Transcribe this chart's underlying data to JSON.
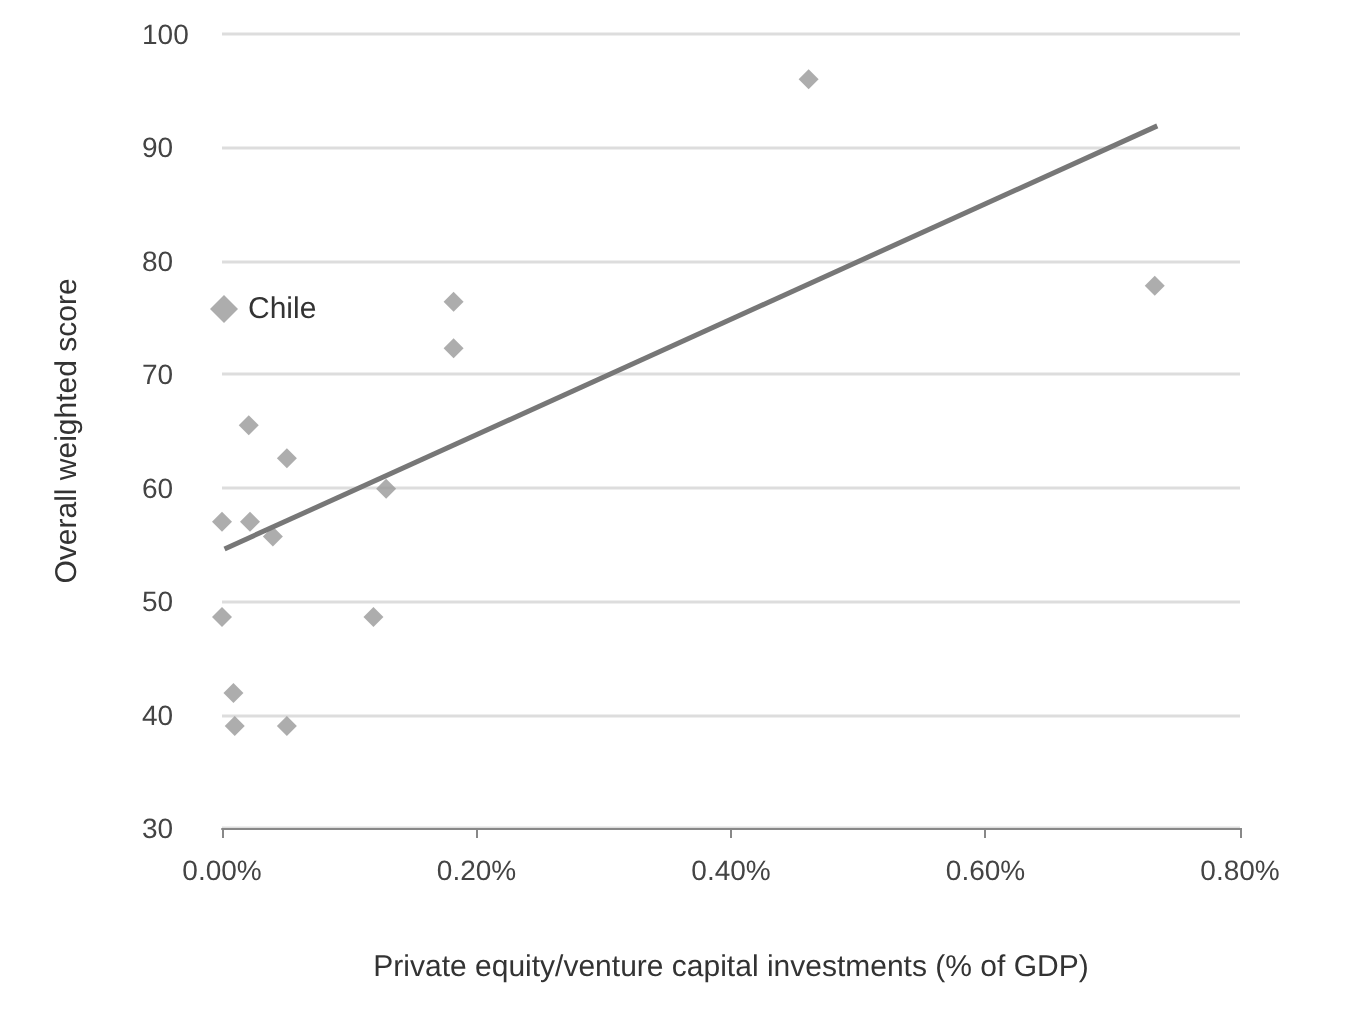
{
  "chart_data": {
    "type": "scatter",
    "xlabel": "Private equity/venture capital investments (% of GDP)",
    "ylabel": "Overall weighted score",
    "series": [
      {
        "name": "Chile",
        "color": "#999999",
        "x": [
          0.0,
          0.022,
          0.021,
          0.051,
          0.04,
          0.129,
          0.0,
          0.119,
          0.009,
          0.01,
          0.051,
          0.182,
          0.182,
          0.461,
          0.733
        ],
        "values": [
          57,
          57,
          65.5,
          62.6,
          55.7,
          59.9,
          48.6,
          48.6,
          41.9,
          39,
          39,
          76.4,
          72.3,
          96,
          77.8
        ]
      },
      {
        "type": "line",
        "marker": "none",
        "color": "#777777",
        "x": [
          0.002,
          0.735
        ],
        "values": [
          54.6,
          91.9
        ]
      }
    ],
    "xlim": [
      0,
      0.8
    ],
    "xticks": [
      {
        "value": 0,
        "label": "0.00%"
      },
      {
        "value": 0.2,
        "label": "0.20%"
      },
      {
        "value": 0.4,
        "label": "0.40%"
      },
      {
        "value": 0.6,
        "label": "0.60%"
      },
      {
        "value": 0.8,
        "label": "0.80%"
      }
    ],
    "ylim": [
      30,
      100
    ],
    "yticks": [
      30,
      40,
      50,
      60,
      70,
      80,
      90,
      100
    ],
    "grid": "y",
    "legend": "top left",
    "marker": "diamond"
  }
}
